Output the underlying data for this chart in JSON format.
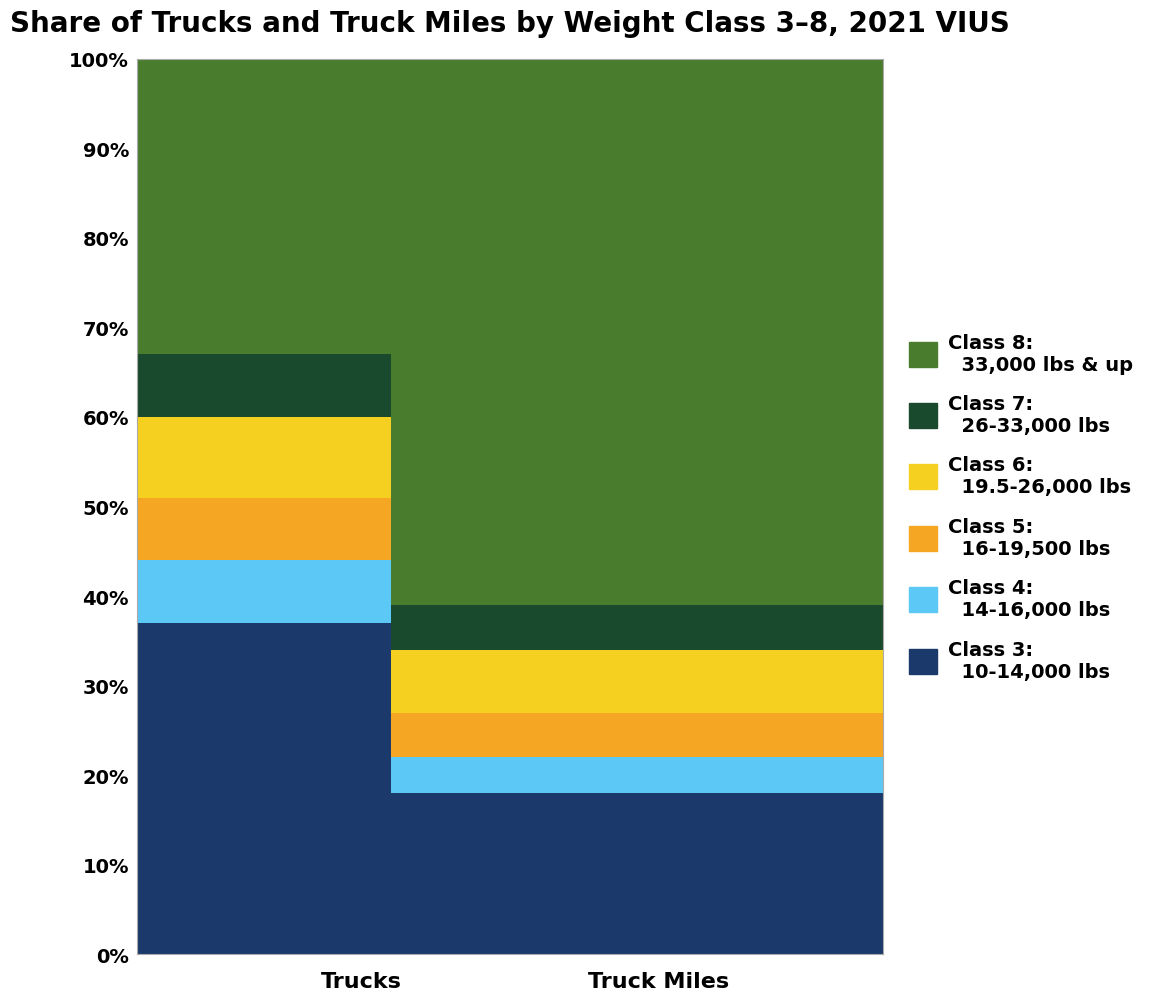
{
  "title": "Share of Trucks and Truck Miles by Weight Class 3–8, 2021 VIUS",
  "categories": [
    "Trucks",
    "Truck Miles"
  ],
  "classes": [
    {
      "label": "Class 3:\n  10-14,000 lbs",
      "trucks": 37.0,
      "truck_miles": 18.0,
      "color": "#1b3a6b"
    },
    {
      "label": "Class 4:\n  14-16,000 lbs",
      "trucks": 7.0,
      "truck_miles": 4.0,
      "color": "#5bc8f5"
    },
    {
      "label": "Class 5:\n  16-19,500 lbs",
      "trucks": 7.0,
      "truck_miles": 5.0,
      "color": "#f5a623"
    },
    {
      "label": "Class 6:\n  19.5-26,000 lbs",
      "trucks": 9.0,
      "truck_miles": 7.0,
      "color": "#f5d020"
    },
    {
      "label": "Class 7:\n  26-33,000 lbs",
      "trucks": 7.0,
      "truck_miles": 5.0,
      "color": "#1a4a2e"
    },
    {
      "label": "Class 8:\n  33,000 lbs & up",
      "trucks": 33.0,
      "truck_miles": 61.0,
      "color": "#4a7c2e"
    }
  ],
  "ylim": [
    0,
    100
  ],
  "yticks": [
    0,
    10,
    20,
    30,
    40,
    50,
    60,
    70,
    80,
    90,
    100
  ],
  "title_fontsize": 20,
  "tick_fontsize": 14,
  "label_fontsize": 16,
  "legend_fontsize": 14,
  "bar_width": 0.72,
  "x_positions": [
    0.3,
    0.7
  ],
  "xlim": [
    0.0,
    1.0
  ],
  "background_color": "#ffffff",
  "grid_color": "#cccccc",
  "spine_color": "#aaaaaa"
}
